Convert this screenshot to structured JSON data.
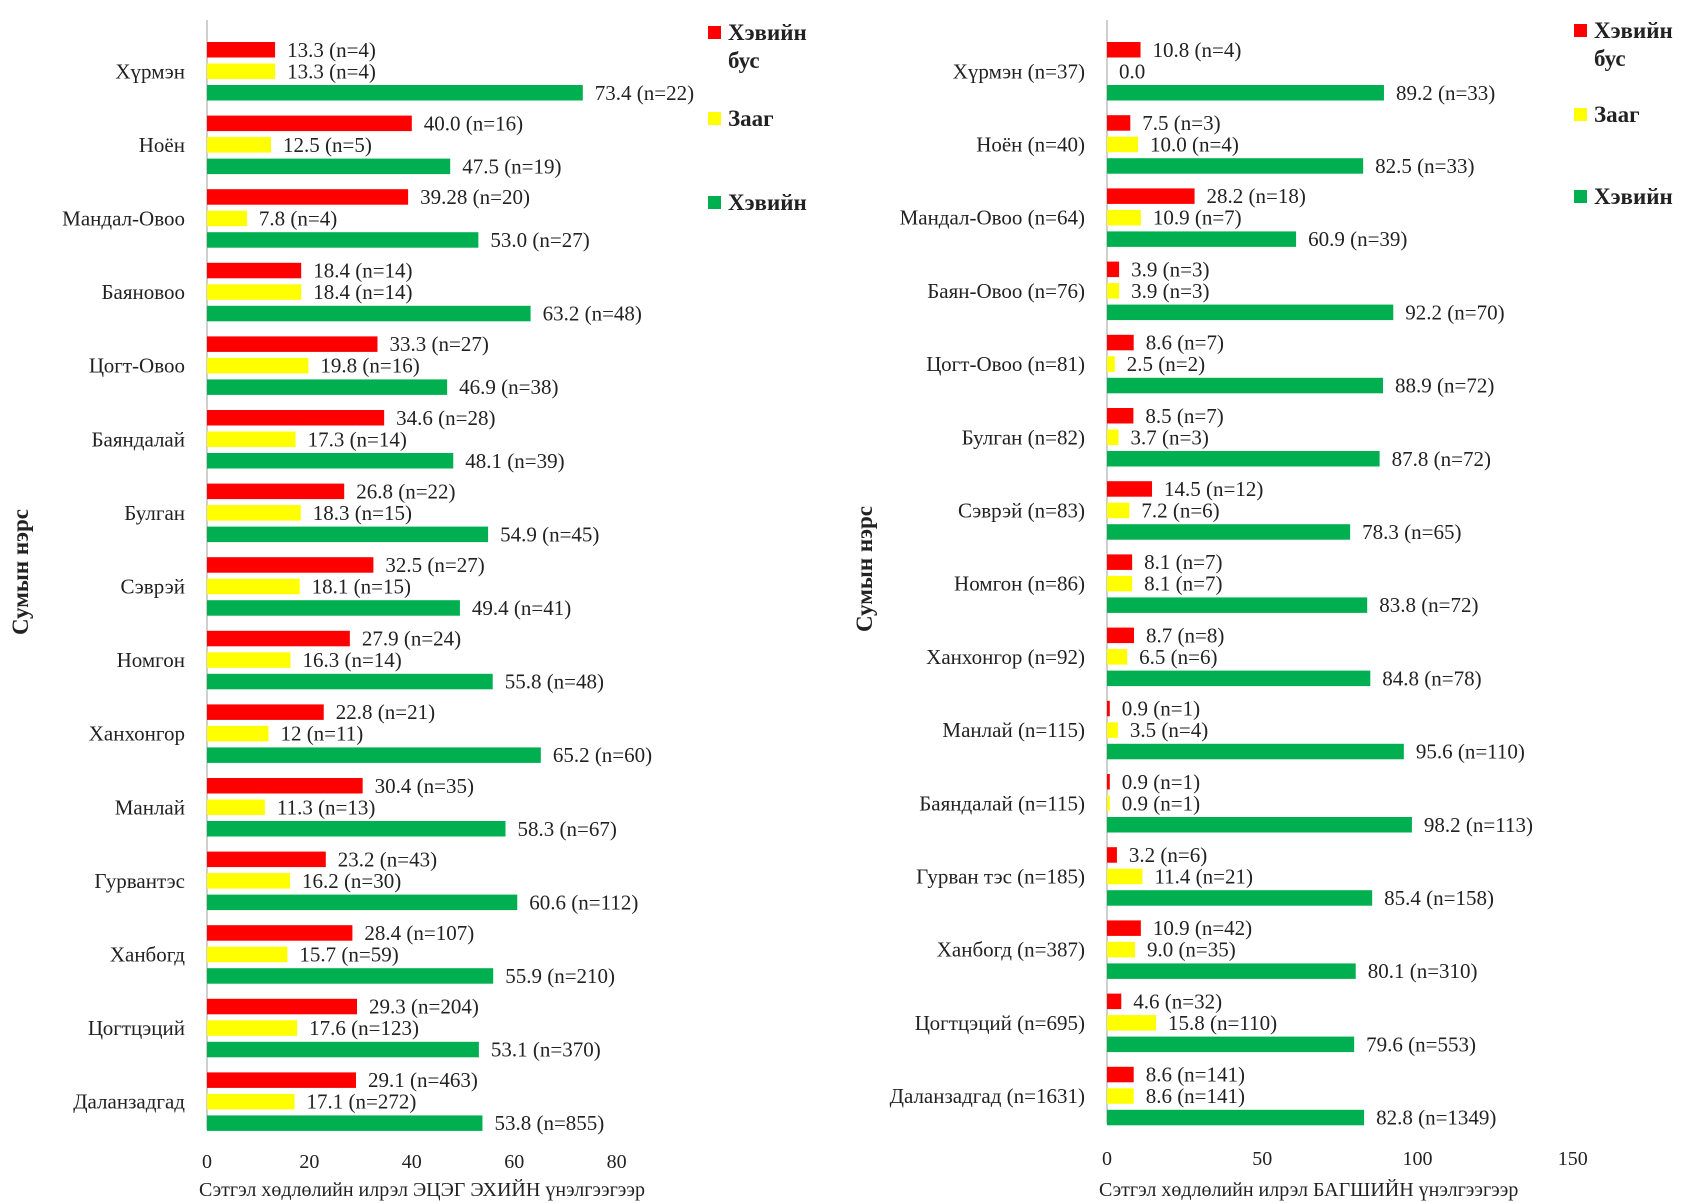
{
  "chart_data": [
    {
      "type": "bar",
      "orientation": "horizontal",
      "ylabel": "Сумын нэрс",
      "xlabel": "Сэтгэл хөдлөлийн илрэл  ЭЦЭГ ЭХИЙН үнэлгээгээр",
      "xlim": [
        0,
        80
      ],
      "xticks": [
        0,
        20,
        40,
        60,
        80
      ],
      "legend_position": "right",
      "categories": [
        "Хүрмэн",
        "Ноён",
        "Мандал-Овоо",
        "Баяновоо",
        "Цогт-Овоо",
        "Баяндалай",
        "Булган",
        "Сэврэй",
        "Номгон",
        "Ханхонгор",
        "Манлай",
        "Гурвантэс",
        "Ханбогд",
        "Цогтцэций",
        "Даланзадгад"
      ],
      "series": [
        {
          "name": "Хэвийн бус",
          "color": "#ff0000",
          "values": [
            13.3,
            40.0,
            39.28,
            18.4,
            33.3,
            34.6,
            26.8,
            32.5,
            27.9,
            22.8,
            30.4,
            23.2,
            28.4,
            29.3,
            29.1
          ],
          "labels": [
            "13.3 (n=4)",
            "40.0 (n=16)",
            "39.28 (n=20)",
            "18.4 (n=14)",
            "33.3 (n=27)",
            "34.6 (n=28)",
            "26.8 (n=22)",
            "32.5 (n=27)",
            "27.9 (n=24)",
            "22.8 (n=21)",
            "30.4 (n=35)",
            "23.2 (n=43)",
            "28.4 (n=107)",
            "29.3 (n=204)",
            "29.1 (n=463)"
          ]
        },
        {
          "name": "Зааг",
          "color": "#ffff00",
          "values": [
            13.3,
            12.5,
            7.8,
            18.4,
            19.8,
            17.3,
            18.3,
            18.1,
            16.3,
            12,
            11.3,
            16.2,
            15.7,
            17.6,
            17.1
          ],
          "labels": [
            "13.3 (n=4)",
            "12.5 (n=5)",
            "7.8 (n=4)",
            "18.4 (n=14)",
            "19.8 (n=16)",
            "17.3 (n=14)",
            "18.3 (n=15)",
            "18.1 (n=15)",
            "16.3 (n=14)",
            "12 (n=11)",
            "11.3 (n=13)",
            "16.2 (n=30)",
            "15.7 (n=59)",
            "17.6 (n=123)",
            "17.1 (n=272)"
          ]
        },
        {
          "name": "Хэвийн",
          "color": "#00b050",
          "values": [
            73.4,
            47.5,
            53.0,
            63.2,
            46.9,
            48.1,
            54.9,
            49.4,
            55.8,
            65.2,
            58.3,
            60.6,
            55.9,
            53.1,
            53.8
          ],
          "labels": [
            "73.4 (n=22)",
            "47.5 (n=19)",
            "53.0 (n=27)",
            "63.2 (n=48)",
            "46.9 (n=38)",
            "48.1 (n=39)",
            "54.9 (n=45)",
            "49.4 (n=41)",
            "55.8 (n=48)",
            "65.2 (n=60)",
            "58.3 (n=67)",
            "60.6 (n=112)",
            "55.9 (n=210)",
            "53.1 (n=370)",
            "53.8 (n=855)"
          ]
        }
      ]
    },
    {
      "type": "bar",
      "orientation": "horizontal",
      "ylabel": "Сумын нэрс",
      "xlabel": "Сэтгэл хөдлөлийн илрэл  БАГШИЙН үнэлгээгээр",
      "xlim": [
        0,
        150
      ],
      "xticks": [
        0,
        50,
        100,
        150
      ],
      "legend_position": "right",
      "categories": [
        "Хүрмэн (n=37)",
        "Ноён (n=40)",
        "Мандал-Овоо (n=64)",
        "Баян-Овоо (n=76)",
        "Цогт-Овоо (n=81)",
        "Булган (n=82)",
        "Сэврэй (n=83)",
        "Номгон (n=86)",
        "Ханхонгор (n=92)",
        "Манлай  (n=115)",
        "Баяндалай (n=115)",
        "Гурван тэс (n=185)",
        "Ханбогд (n=387)",
        "Цогтцэций (n=695)",
        "Даланзадгад (n=1631)"
      ],
      "series": [
        {
          "name": "Хэвийн бус",
          "color": "#ff0000",
          "values": [
            10.8,
            7.5,
            28.2,
            3.9,
            8.6,
            8.5,
            14.5,
            8.1,
            8.7,
            0.9,
            0.9,
            3.2,
            10.9,
            4.6,
            8.6
          ],
          "labels": [
            "10.8 (n=4)",
            "7.5 (n=3)",
            "28.2 (n=18)",
            "3.9 (n=3)",
            "8.6 (n=7)",
            "8.5 (n=7)",
            "14.5 (n=12)",
            "8.1 (n=7)",
            "8.7 (n=8)",
            "0.9 (n=1)",
            "0.9 (n=1)",
            "3.2 (n=6)",
            "10.9 (n=42)",
            "4.6 (n=32)",
            "8.6 (n=141)"
          ]
        },
        {
          "name": "Зааг",
          "color": "#ffff00",
          "values": [
            0.0,
            10.0,
            10.9,
            3.9,
            2.5,
            3.7,
            7.2,
            8.1,
            6.5,
            3.5,
            0.9,
            11.4,
            9.0,
            15.8,
            8.6
          ],
          "labels": [
            "0.0",
            "10.0 (n=4)",
            "10.9 (n=7)",
            "3.9 (n=3)",
            "2.5 (n=2)",
            "3.7 (n=3)",
            "7.2 (n=6)",
            "8.1 (n=7)",
            "6.5 (n=6)",
            "3.5 (n=4)",
            "0.9 (n=1)",
            "11.4 (n=21)",
            "9.0 (n=35)",
            "15.8 (n=110)",
            "8.6 (n=141)"
          ]
        },
        {
          "name": "Хэвийн",
          "color": "#00b050",
          "values": [
            89.2,
            82.5,
            60.9,
            92.2,
            88.9,
            87.8,
            78.3,
            83.8,
            84.8,
            95.6,
            98.2,
            85.4,
            80.1,
            79.6,
            82.8
          ],
          "labels": [
            "89.2 (n=33)",
            "82.5 (n=33)",
            "60.9 (n=39)",
            "92.2 (n=70)",
            "88.9 (n=72)",
            "87.8 (n=72)",
            "78.3 (n=65)",
            "83.8 (n=72)",
            "84.8 (n=78)",
            "95.6 (n=110)",
            "98.2 (n=113)",
            "85.4 (n=158)",
            "80.1 (n=310)",
            "79.6 (n=553)",
            "82.8 (n=1349)"
          ]
        }
      ]
    }
  ]
}
